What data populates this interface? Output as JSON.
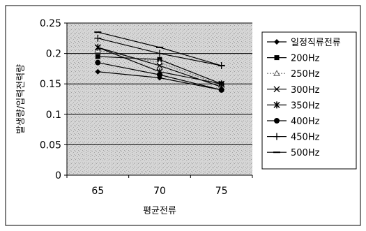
{
  "chart_data": {
    "type": "line",
    "title": "",
    "xlabel": "평균전류",
    "ylabel": "발생량/입력전력량",
    "categories": [
      "65",
      "70",
      "75"
    ],
    "yticks": [
      "0",
      "0.05",
      "0.1",
      "0.15",
      "0.2",
      "0.25"
    ],
    "ylim": [
      0,
      0.25
    ],
    "grid": true,
    "legend_position": "right",
    "series": [
      {
        "name": "일정직류전류",
        "values": [
          0.17,
          0.16,
          0.14
        ],
        "marker": "diamond",
        "dash": "solid"
      },
      {
        "name": "200Hz",
        "values": [
          0.195,
          0.19,
          0.15
        ],
        "marker": "square",
        "dash": "solid"
      },
      {
        "name": "250Hz",
        "values": [
          0.205,
          0.185,
          0.148
        ],
        "marker": "triangle",
        "dash": "dotted"
      },
      {
        "name": "300Hz",
        "values": [
          0.21,
          0.18,
          0.145
        ],
        "marker": "x",
        "dash": "solid"
      },
      {
        "name": "350Hz",
        "values": [
          0.21,
          0.17,
          0.15
        ],
        "marker": "star",
        "dash": "solid"
      },
      {
        "name": "400Hz",
        "values": [
          0.185,
          0.165,
          0.14
        ],
        "marker": "circle",
        "dash": "solid"
      },
      {
        "name": "450Hz",
        "values": [
          0.225,
          0.2,
          0.18
        ],
        "marker": "plus",
        "dash": "solid"
      },
      {
        "name": "500Hz",
        "values": [
          0.235,
          0.21,
          0.18
        ],
        "marker": "dash",
        "dash": "solid"
      }
    ]
  }
}
